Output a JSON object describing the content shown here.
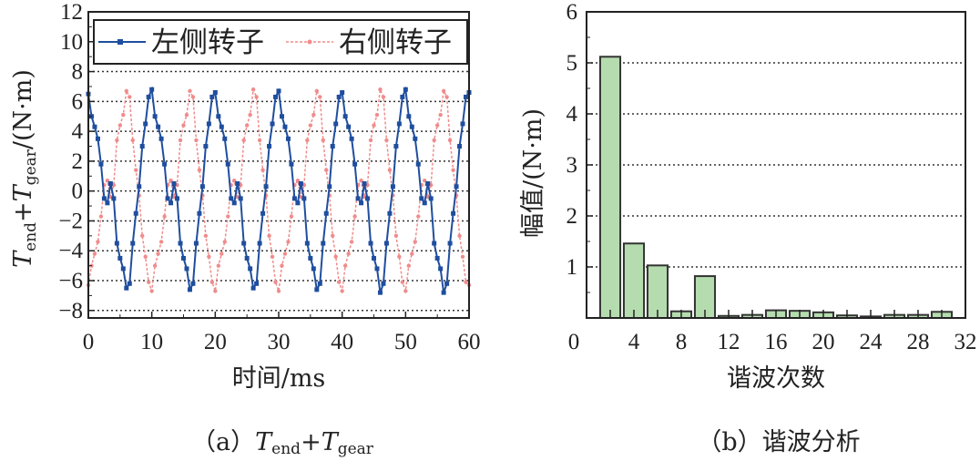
{
  "chart_data": [
    {
      "type": "line",
      "panel_caption": {
        "prefix": "（a）",
        "t1": "T",
        "s1": "end",
        "plus": "+",
        "t2": "T",
        "s2": "gear"
      },
      "xlabel": "时间/ms",
      "ylabel": {
        "t1": "T",
        "s1": "end",
        "plus": "+",
        "t2": "T",
        "s2": "gear",
        "unit": "/(N·m)"
      },
      "xlim": [
        0,
        60
      ],
      "ylim": [
        -8.5,
        12
      ],
      "xticks": [
        0,
        10,
        20,
        30,
        40,
        50,
        60
      ],
      "xtick_labels": [
        "0",
        "10",
        "20",
        "30",
        "40",
        "50",
        "60"
      ],
      "yticks": [
        -8,
        -6,
        -4,
        -2,
        0,
        2,
        4,
        6,
        8,
        10,
        12
      ],
      "ytick_labels": [
        "−8",
        "−6",
        "−4",
        "−2",
        "0",
        "2",
        "4",
        "6",
        "8",
        "10",
        "12"
      ],
      "grid": "horizontal dotted",
      "legend_placement": "top",
      "x": [
        0,
        0.5,
        1,
        1.5,
        2,
        2.5,
        3,
        3.5,
        4,
        4.5,
        5,
        5.5,
        6,
        6.5,
        7,
        7.5,
        8,
        8.5,
        9,
        9.5,
        10,
        10.5,
        11,
        11.5,
        12,
        12.5,
        13,
        13.5,
        14,
        14.5,
        15,
        15.5,
        16,
        16.5,
        17,
        17.5,
        18,
        18.5,
        19,
        19.5,
        20,
        20.5,
        21,
        21.5,
        22,
        22.5,
        23,
        23.5,
        24,
        24.5,
        25,
        25.5,
        26,
        26.5,
        27,
        27.5,
        28,
        28.5,
        29,
        29.5,
        30,
        30.5,
        31,
        31.5,
        32,
        32.5,
        33,
        33.5,
        34,
        34.5,
        35,
        35.5,
        36,
        36.5,
        37,
        37.5,
        38,
        38.5,
        39,
        39.5,
        40,
        40.5,
        41,
        41.5,
        42,
        42.5,
        43,
        43.5,
        44,
        44.5,
        45,
        45.5,
        46,
        46.5,
        47,
        47.5,
        48,
        48.5,
        49,
        49.5,
        50,
        50.5,
        51,
        51.5,
        52,
        52.5,
        53,
        53.5,
        54,
        54.5,
        55,
        55.5,
        56,
        56.5,
        57,
        57.5,
        58,
        58.5,
        59,
        59.5,
        60
      ],
      "series": [
        {
          "name": "左侧转子",
          "color": "#1f4e9e",
          "style": "solid-square-markers",
          "values": [
            6.5,
            5.0,
            4.3,
            3.5,
            1.8,
            -0.5,
            -0.8,
            0.5,
            -0.5,
            -3.5,
            -4.5,
            -5.2,
            -6.5,
            -6.2,
            -3.5,
            -1.5,
            0.3,
            3.0,
            4.5,
            6.3,
            6.8,
            5.0,
            4.3,
            3.5,
            1.8,
            -0.5,
            -0.8,
            0.5,
            -0.5,
            -3.5,
            -4.5,
            -5.2,
            -6.6,
            -6.2,
            -3.5,
            -1.5,
            0.3,
            3.0,
            4.5,
            6.3,
            6.6,
            5.0,
            4.3,
            3.5,
            1.8,
            -0.5,
            -0.8,
            0.5,
            -0.5,
            -3.5,
            -4.5,
            -5.2,
            -6.5,
            -6.2,
            -3.5,
            -1.5,
            0.3,
            3.0,
            4.5,
            6.3,
            6.7,
            5.0,
            4.3,
            3.5,
            1.8,
            -0.5,
            -0.8,
            0.5,
            -0.5,
            -3.5,
            -4.5,
            -5.2,
            -6.6,
            -6.2,
            -3.5,
            -1.5,
            0.3,
            3.0,
            4.5,
            6.3,
            6.6,
            5.0,
            4.3,
            3.5,
            1.8,
            -0.5,
            -0.8,
            0.5,
            -0.5,
            -3.5,
            -4.5,
            -5.2,
            -6.8,
            -6.2,
            -3.5,
            -1.5,
            0.3,
            3.0,
            4.5,
            6.3,
            6.8,
            5.0,
            4.3,
            3.5,
            1.8,
            -0.5,
            -0.8,
            0.5,
            -0.5,
            -3.5,
            -4.5,
            -5.2,
            -6.8,
            -6.2,
            -3.5,
            -1.5,
            0.3,
            3.0,
            4.5,
            6.3,
            6.6
          ]
        },
        {
          "name": "右侧转子",
          "color": "#f08c8c",
          "style": "dashed-dot-markers",
          "values": [
            -6.3,
            -5.0,
            -4.2,
            -3.4,
            -1.7,
            0.4,
            0.7,
            -0.4,
            0.4,
            3.4,
            4.4,
            5.1,
            6.7,
            6.3,
            3.4,
            1.4,
            -0.3,
            -3.0,
            -4.4,
            -6.1,
            -6.7,
            -5.0,
            -4.2,
            -3.4,
            -1.7,
            0.4,
            0.7,
            -0.4,
            0.4,
            3.4,
            4.4,
            5.1,
            6.7,
            6.3,
            3.4,
            1.4,
            -0.3,
            -3.0,
            -4.4,
            -6.1,
            -6.7,
            -5.0,
            -4.2,
            -3.4,
            -1.7,
            0.4,
            0.7,
            -0.4,
            0.4,
            3.4,
            4.4,
            5.1,
            6.8,
            6.3,
            3.4,
            1.4,
            -0.3,
            -3.0,
            -4.4,
            -6.1,
            -6.7,
            -5.0,
            -4.2,
            -3.4,
            -1.7,
            0.4,
            0.7,
            -0.4,
            0.4,
            3.4,
            4.4,
            5.1,
            6.7,
            6.3,
            3.4,
            1.4,
            -0.3,
            -3.0,
            -4.4,
            -6.1,
            -6.7,
            -5.0,
            -4.2,
            -3.4,
            -1.7,
            0.4,
            0.7,
            -0.4,
            0.4,
            3.4,
            4.4,
            5.1,
            6.8,
            6.3,
            3.4,
            1.4,
            -0.3,
            -3.0,
            -4.4,
            -6.1,
            -6.7,
            -5.0,
            -4.2,
            -3.4,
            -1.7,
            0.4,
            0.7,
            -0.4,
            0.4,
            3.4,
            4.4,
            5.1,
            6.7,
            6.3,
            3.4,
            1.4,
            -0.3,
            -3.0,
            -4.4,
            -6.1,
            -6.3
          ]
        }
      ]
    },
    {
      "type": "bar",
      "panel_caption": {
        "prefix": "（b）",
        "text": "谐波分析"
      },
      "xlabel": "谐波次数",
      "ylabel": "幅值/(N·m)",
      "xlim": [
        0,
        32
      ],
      "ylim": [
        0,
        6
      ],
      "xticks": [
        0,
        4,
        8,
        12,
        16,
        20,
        24,
        28,
        32
      ],
      "xtick_labels": [
        "0",
        "4",
        "8",
        "12",
        "16",
        "20",
        "24",
        "28",
        "32"
      ],
      "yticks": [
        1,
        2,
        3,
        4,
        5,
        6
      ],
      "ytick_labels": [
        "1",
        "2",
        "3",
        "4",
        "5",
        "6"
      ],
      "grid": "horizontal dotted",
      "bar_color": "#b5dcae",
      "categories": [
        2,
        4,
        6,
        8,
        10,
        12,
        14,
        16,
        18,
        20,
        22,
        24,
        26,
        28,
        30
      ],
      "values": [
        5.12,
        1.46,
        1.03,
        0.13,
        0.82,
        0.04,
        0.06,
        0.15,
        0.14,
        0.11,
        0.05,
        0.03,
        0.06,
        0.06,
        0.12
      ]
    }
  ]
}
